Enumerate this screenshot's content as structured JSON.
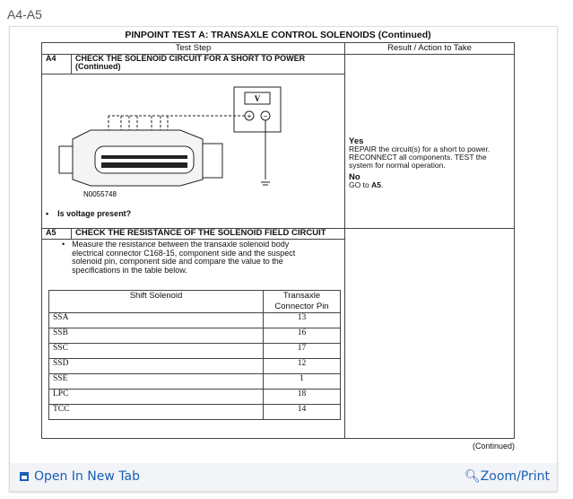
{
  "label": "A4-A5",
  "doc": {
    "title": "PINPOINT TEST  A: TRANSAXLE CONTROL SOLENOIDS (Continued)",
    "col_step": "Test Step",
    "col_result": "Result / Action to Take",
    "a4": {
      "id": "A4",
      "heading": "CHECK THE SOLENOID CIRCUIT FOR A SHORT TO POWER",
      "heading2": "(Continued)",
      "figure_id": "N0055748",
      "meter": "V",
      "plus": "+",
      "minus": "−",
      "question": "Is voltage present?"
    },
    "result": {
      "yes": "Yes",
      "yes_text": "REPAIR the circuit(s) for a short to power. RECONNECT all components. TEST the system for normal operation.",
      "no": "No",
      "no_text": "GO to ",
      "no_ref": "A5",
      "no_end": "."
    },
    "a5": {
      "id": "A5",
      "heading": "CHECK THE RESISTANCE OF THE SOLENOID FIELD CIRCUIT",
      "text": "Measure the resistance between the transaxle solenoid body electrical connector C168-15, component side and the suspect solenoid pin, component side and compare the value to the specifications in the table below."
    },
    "inner": {
      "h1": "Shift Solenoid",
      "h2": "Transaxle Connector Pin",
      "rows": [
        [
          "SSA",
          "13"
        ],
        [
          "SSB",
          "16"
        ],
        [
          "SSC",
          "17"
        ],
        [
          "SSD",
          "12"
        ],
        [
          "SSE",
          "1"
        ],
        [
          "LPC",
          "18"
        ],
        [
          "TCC",
          "14"
        ]
      ]
    },
    "continued": "(Continued)"
  },
  "footer": {
    "open": "Open In New Tab",
    "zoom": "Zoom/Print"
  }
}
